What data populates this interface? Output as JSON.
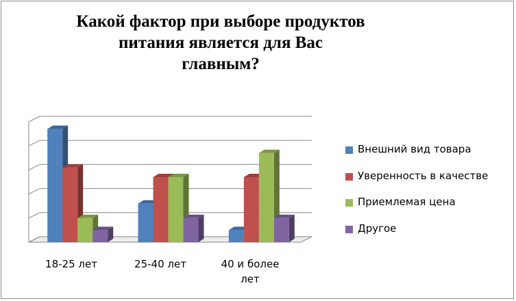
{
  "chart_data": {
    "type": "bar",
    "title": "Какой фактор при выборе продуктов\nпитания является для Вас\nглавным?",
    "categories": [
      "18-25 лет",
      "25-40 лет",
      "40 и более\nлет"
    ],
    "series": [
      {
        "name": "Внешний вид товара",
        "color": "#4f81bd",
        "values": [
          4.7,
          1.6,
          0.5
        ]
      },
      {
        "name": "Уверенность в качестве",
        "color": "#c0504d",
        "values": [
          3.1,
          2.7,
          2.7
        ]
      },
      {
        "name": "Приемлемая цена",
        "color": "#9bbb59",
        "values": [
          1.0,
          2.7,
          3.7
        ]
      },
      {
        "name": "Другое",
        "color": "#8064a2",
        "values": [
          0.5,
          1.0,
          1.0
        ]
      }
    ],
    "ylim": [
      0,
      5
    ],
    "grid": true,
    "legend": "right"
  }
}
